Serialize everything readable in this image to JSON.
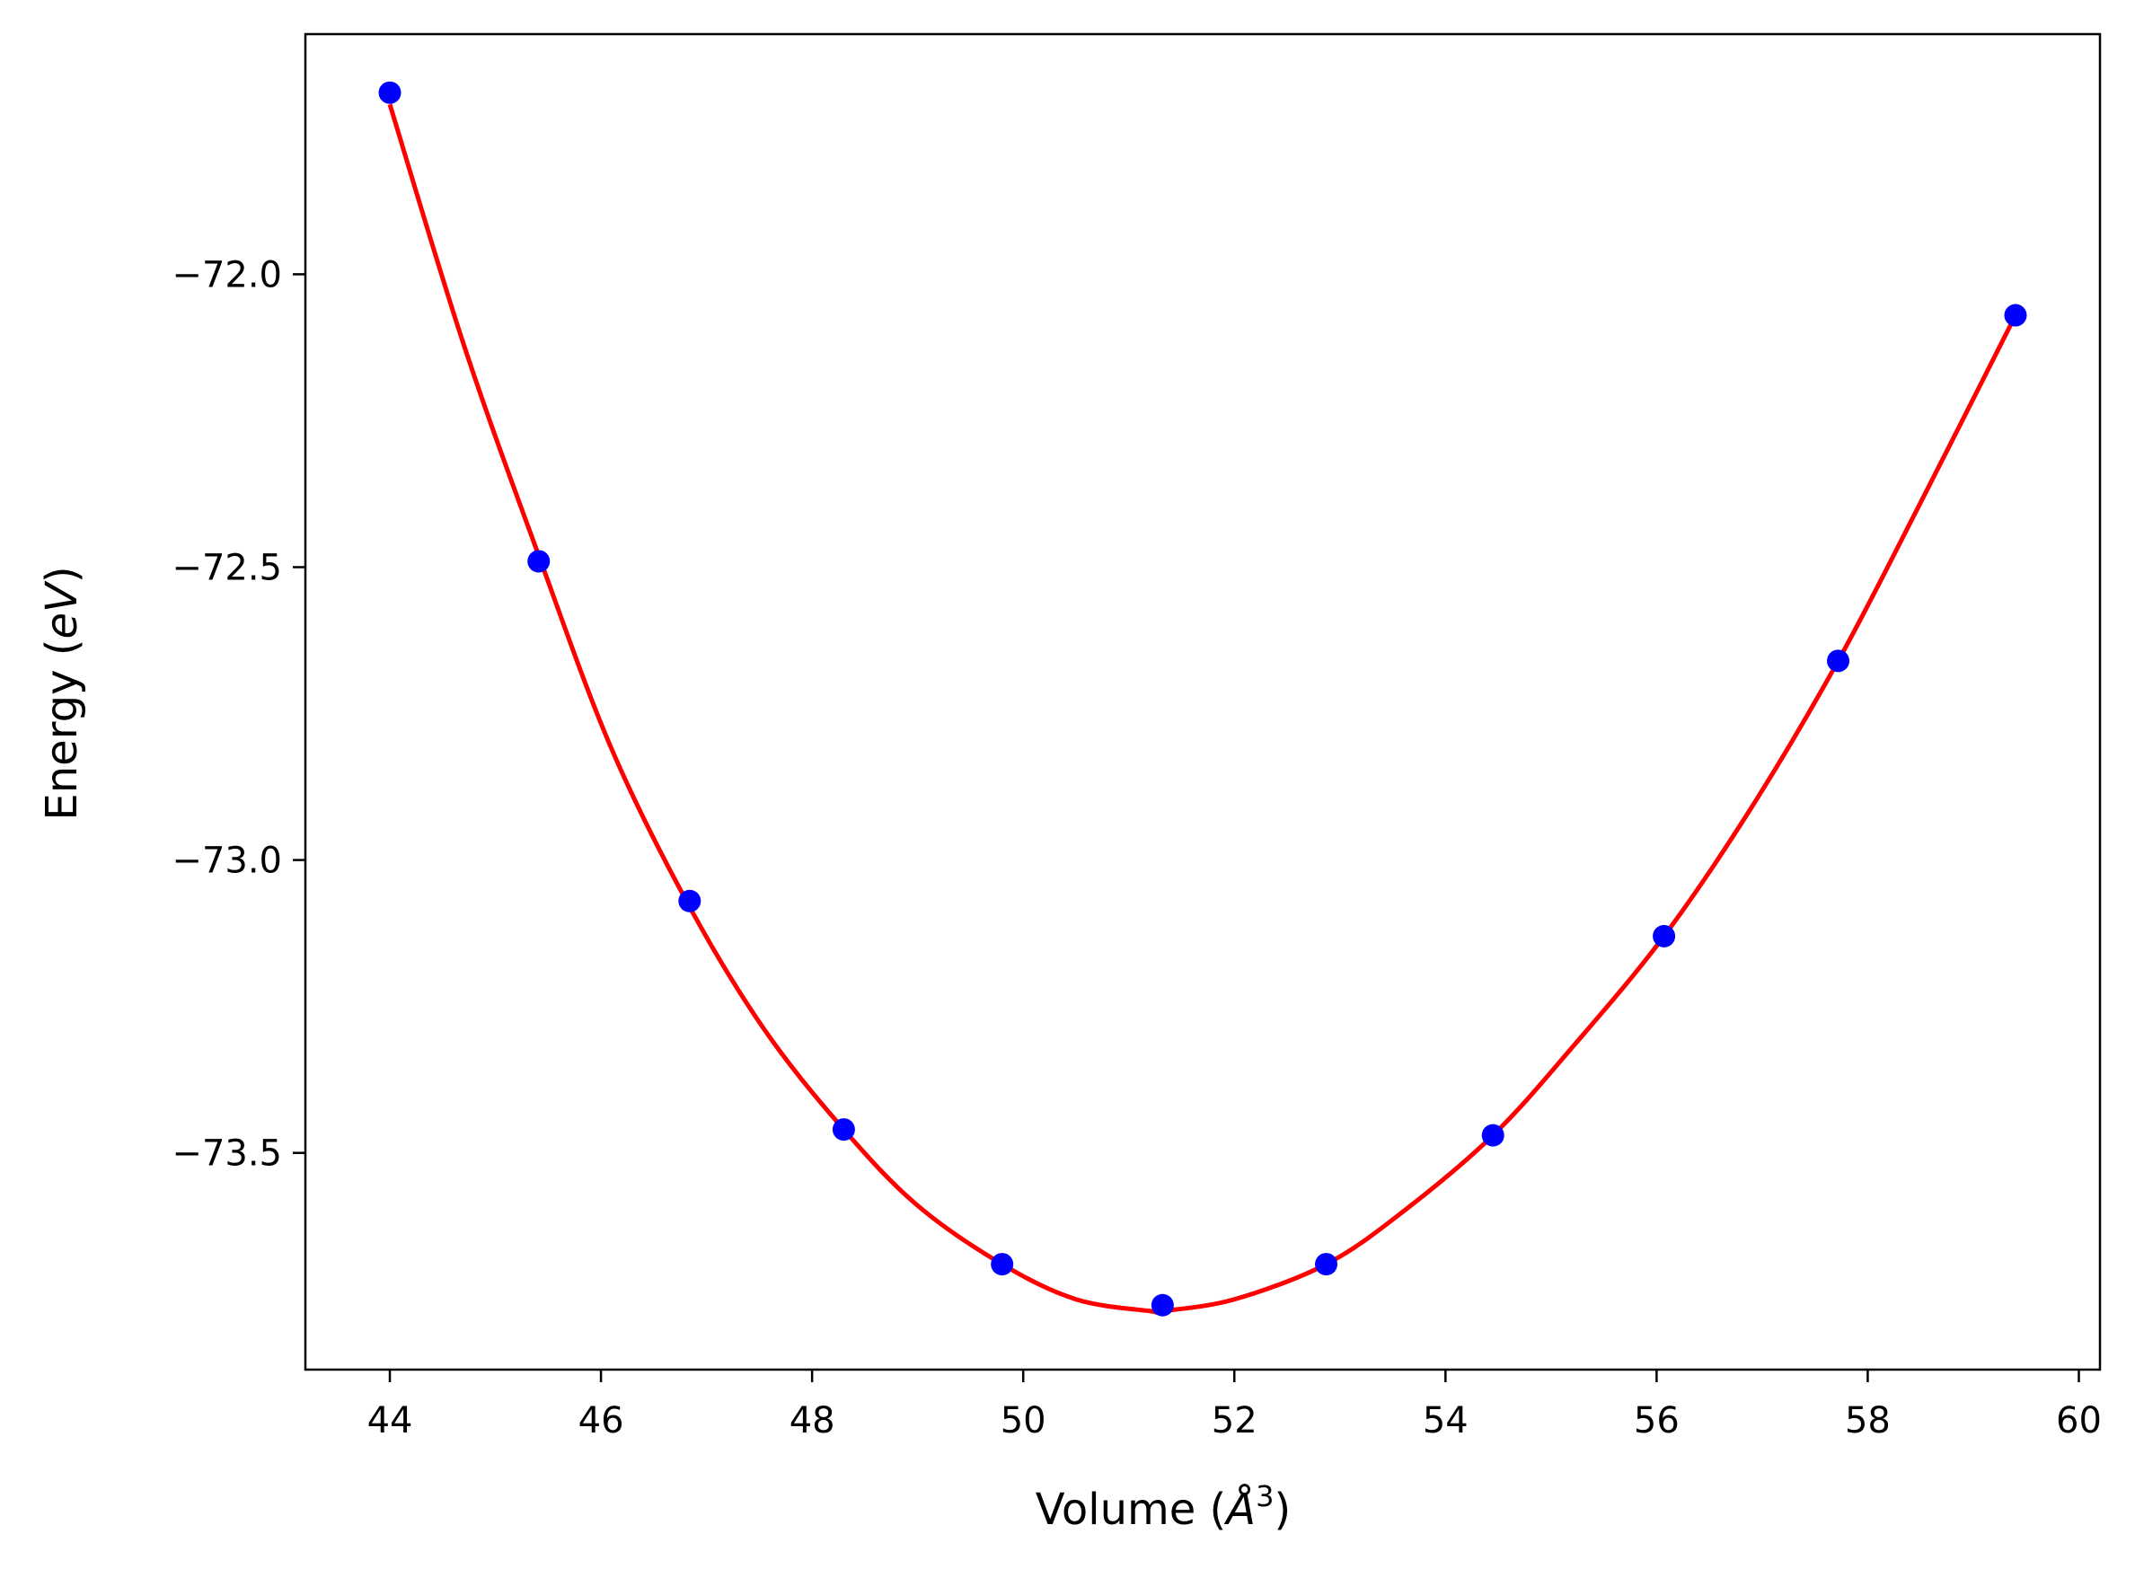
{
  "chart_data": {
    "type": "line",
    "xlabel": "Volume (Å³)",
    "xlabel_text": "Volume (",
    "xlabel_symbol": "Å",
    "xlabel_exp": "3",
    "xlabel_close": ")",
    "ylabel_text": "Energy (",
    "ylabel_unit": "eV",
    "ylabel_close": ")",
    "xlim": [
      43.2,
      60.2
    ],
    "ylim": [
      -73.87,
      -71.59
    ],
    "x_ticks": [
      44,
      46,
      48,
      50,
      52,
      54,
      56,
      58,
      60
    ],
    "x_tick_labels": [
      "44",
      "46",
      "48",
      "50",
      "52",
      "54",
      "56",
      "58",
      "60"
    ],
    "y_ticks": [
      -72.0,
      -72.5,
      -73.0,
      -73.5
    ],
    "y_tick_labels": [
      "−72.0",
      "−72.5",
      "−73.0",
      "−73.5"
    ],
    "grid": false,
    "series": [
      {
        "style": "points",
        "color": "#0000ff",
        "x": [
          44.0,
          45.41,
          46.84,
          48.3,
          49.8,
          51.32,
          52.87,
          54.45,
          56.07,
          57.72,
          59.4
        ],
        "y": [
          -71.69,
          -72.49,
          -73.07,
          -73.46,
          -73.69,
          -73.76,
          -73.69,
          -73.47,
          -73.13,
          -72.66,
          -72.07
        ]
      },
      {
        "style": "line",
        "color": "#ff0000",
        "x": [
          44.0,
          44.7,
          45.41,
          46.1,
          46.84,
          47.55,
          48.3,
          49.0,
          49.8,
          50.5,
          51.2,
          51.32,
          52.0,
          52.87,
          53.6,
          54.45,
          55.2,
          56.07,
          56.9,
          57.72,
          58.5,
          59.4
        ],
        "y": [
          -71.71,
          -72.12,
          -72.48,
          -72.81,
          -73.08,
          -73.29,
          -73.46,
          -73.59,
          -73.69,
          -73.75,
          -73.77,
          -73.77,
          -73.75,
          -73.69,
          -73.6,
          -73.47,
          -73.32,
          -73.13,
          -72.91,
          -72.66,
          -72.39,
          -72.07
        ]
      }
    ]
  }
}
